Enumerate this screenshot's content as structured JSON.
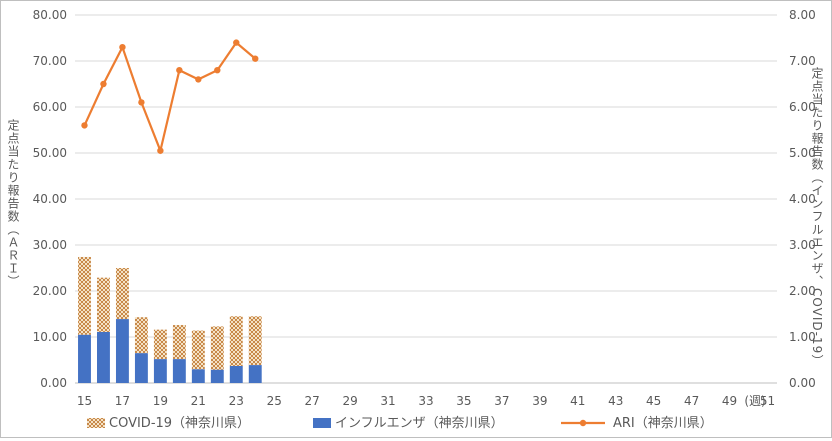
{
  "chart_data": {
    "type": "bar",
    "x_ticks": [
      "15",
      "17",
      "19",
      "21",
      "23",
      "25",
      "27",
      "29",
      "31",
      "33",
      "35",
      "37",
      "39",
      "41",
      "43",
      "45",
      "47",
      "49",
      "51"
    ],
    "x_unit": "(週)",
    "weeks": [
      15,
      16,
      17,
      18,
      19,
      20,
      21,
      22,
      23,
      24
    ],
    "series": [
      {
        "name": "COVID-19（神奈川県）",
        "kind": "bar-stacked",
        "axis": "left",
        "color": "#d9a05b",
        "pattern": "dotted",
        "values": [
          16.9,
          11.8,
          11.1,
          7.8,
          6.4,
          7.4,
          8.4,
          9.4,
          10.8,
          10.6
        ]
      },
      {
        "name": "インフルエンザ（神奈川県）",
        "kind": "bar-stacked",
        "axis": "left",
        "color": "#4472c4",
        "values": [
          10.5,
          11.1,
          13.9,
          6.5,
          5.2,
          5.2,
          3.0,
          2.9,
          3.7,
          3.9
        ]
      },
      {
        "name": "ARI（神奈川県）",
        "kind": "line",
        "axis": "right",
        "color": "#ed7d31",
        "values": [
          5.6,
          6.5,
          7.3,
          6.1,
          5.05,
          6.8,
          6.6,
          6.8,
          7.4,
          7.05
        ]
      }
    ],
    "y_left": {
      "label": "定点当たり報告数（ＡＲＩ）",
      "ylim": [
        0,
        80
      ],
      "ticks": [
        "0.00",
        "10.00",
        "20.00",
        "30.00",
        "40.00",
        "50.00",
        "60.00",
        "70.00",
        "80.00"
      ]
    },
    "y_right": {
      "label": "定点当たり報告数（インフルエンザ、COVID-19）",
      "ylim": [
        0,
        8
      ],
      "ticks": [
        "0.00",
        "1.00",
        "2.00",
        "3.00",
        "4.00",
        "5.00",
        "6.00",
        "7.00",
        "8.00"
      ]
    },
    "x_range": [
      15,
      52
    ],
    "grid": true,
    "legend_position": "bottom"
  }
}
